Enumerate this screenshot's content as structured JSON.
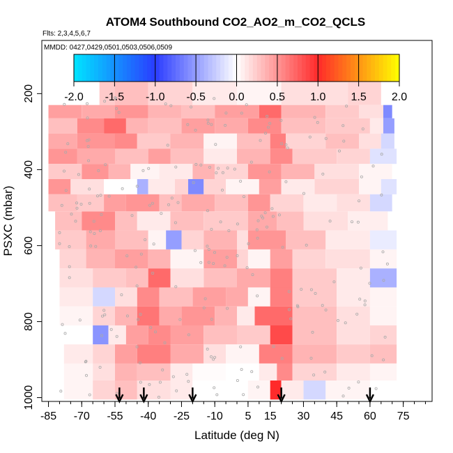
{
  "chart_data": {
    "type": "heatmap",
    "title": "ATOM4 Southbound CO2_AO2_m_CO2_QCLS",
    "subtitle_flights": "Flts: 2,3,4,5,6,7",
    "subtitle_dates": "MMDD: 0427,0429,0501,0503,0506,0509",
    "xlabel": "Latitude (deg N)",
    "ylabel": "PSXC (mbar)",
    "xlim": [
      -88,
      88
    ],
    "ylim": [
      1010,
      60
    ],
    "x_ticks": [
      -85,
      -70,
      -55,
      -40,
      -25,
      -10,
      5,
      15,
      30,
      45,
      60,
      75
    ],
    "x_tick_labels": [
      "-85",
      "-70",
      "-55",
      "-40",
      "-25",
      "-10",
      "5",
      "15",
      "30",
      "45",
      "60",
      "75"
    ],
    "x_minor_step": 5,
    "y_ticks": [
      200,
      400,
      600,
      800,
      1000
    ],
    "y_tick_labels": [
      "200",
      "400",
      "600",
      "800",
      "1000"
    ],
    "colorbar": {
      "min": -2.0,
      "max": 2.0,
      "ticks": [
        -2.0,
        -1.5,
        -1.0,
        -0.5,
        0.0,
        0.5,
        1.0,
        1.5,
        2.0
      ],
      "tick_labels": [
        "-2.0",
        "-1.5",
        "-1.0",
        "-0.5",
        "0.0",
        "0.5",
        "1.0",
        "1.5",
        "2.0"
      ],
      "colors": {
        "low": "#00e5ff",
        "mid_low": "#2a3cff",
        "zero": "#ffffff",
        "mid_high": "#ff2a2a",
        "high": "#ffff00"
      }
    },
    "profile_arrows_lat": [
      -53,
      -42,
      -20,
      20,
      60
    ],
    "band_pressures": [
      200,
      260,
      300,
      350,
      400,
      450,
      500,
      550,
      600,
      650,
      700,
      750,
      800,
      850,
      900,
      950,
      1000
    ],
    "bands": [
      {
        "p_top": 165,
        "p_bot": 230,
        "segments": [
          [
            -62,
            -55,
            0.25
          ],
          [
            -55,
            -40,
            0.3
          ],
          [
            -40,
            -20,
            0.2
          ],
          [
            -20,
            0,
            0.1
          ],
          [
            0,
            20,
            0.05
          ],
          [
            20,
            50,
            0.15
          ],
          [
            50,
            65,
            0.2
          ]
        ]
      },
      {
        "p_top": 230,
        "p_bot": 265,
        "segments": [
          [
            -85,
            -70,
            0.45
          ],
          [
            -70,
            -55,
            0.4
          ],
          [
            -55,
            -40,
            0.5
          ],
          [
            -40,
            -25,
            0.35
          ],
          [
            -25,
            -10,
            0.3
          ],
          [
            -10,
            10,
            0.45
          ],
          [
            10,
            20,
            0.7
          ],
          [
            20,
            40,
            0.35
          ],
          [
            40,
            55,
            0.25
          ],
          [
            55,
            66,
            0.15
          ],
          [
            66,
            70,
            -0.6
          ]
        ]
      },
      {
        "p_top": 265,
        "p_bot": 305,
        "segments": [
          [
            -85,
            -72,
            0.3
          ],
          [
            -72,
            -60,
            0.55
          ],
          [
            -60,
            -50,
            0.7
          ],
          [
            -50,
            -40,
            0.35
          ],
          [
            -40,
            -25,
            0.3
          ],
          [
            -25,
            -10,
            0.45
          ],
          [
            -10,
            5,
            0.4
          ],
          [
            5,
            20,
            0.55
          ],
          [
            20,
            40,
            0.3
          ],
          [
            40,
            60,
            0.25
          ],
          [
            60,
            66,
            0.1
          ],
          [
            66,
            71,
            -0.5
          ]
        ]
      },
      {
        "p_top": 305,
        "p_bot": 345,
        "segments": [
          [
            -85,
            -72,
            0.4
          ],
          [
            -72,
            -55,
            0.5
          ],
          [
            -55,
            -45,
            0.55
          ],
          [
            -45,
            -30,
            0.25
          ],
          [
            -30,
            -15,
            0.35
          ],
          [
            -15,
            0,
            0.05
          ],
          [
            0,
            15,
            0.3
          ],
          [
            15,
            22,
            0.6
          ],
          [
            22,
            40,
            0.2
          ],
          [
            40,
            55,
            0.3
          ],
          [
            55,
            65,
            0.15
          ],
          [
            65,
            71,
            -0.2
          ]
        ]
      },
      {
        "p_top": 345,
        "p_bot": 385,
        "segments": [
          [
            -85,
            -72,
            0.5
          ],
          [
            -72,
            -55,
            0.4
          ],
          [
            -55,
            -40,
            0.3
          ],
          [
            -40,
            -30,
            0.45
          ],
          [
            -30,
            -15,
            0.3
          ],
          [
            -15,
            0,
            0.1
          ],
          [
            0,
            15,
            0.35
          ],
          [
            15,
            25,
            0.55
          ],
          [
            25,
            45,
            0.25
          ],
          [
            45,
            60,
            0.2
          ],
          [
            60,
            72,
            -0.15
          ]
        ]
      },
      {
        "p_top": 385,
        "p_bot": 425,
        "segments": [
          [
            -85,
            -70,
            0.25
          ],
          [
            -70,
            -58,
            0.5
          ],
          [
            -58,
            -48,
            0.35
          ],
          [
            -48,
            -35,
            0.05
          ],
          [
            -35,
            -20,
            0.1
          ],
          [
            -20,
            -10,
            0.35
          ],
          [
            -10,
            5,
            0.2
          ],
          [
            5,
            20,
            0.5
          ],
          [
            20,
            35,
            0.35
          ],
          [
            35,
            55,
            0.15
          ],
          [
            55,
            70,
            0.05
          ]
        ]
      },
      {
        "p_top": 425,
        "p_bot": 465,
        "segments": [
          [
            -85,
            -75,
            0.5
          ],
          [
            -75,
            -60,
            0.15
          ],
          [
            -60,
            -45,
            0.0
          ],
          [
            -45,
            -40,
            -0.4
          ],
          [
            -40,
            -28,
            0.1
          ],
          [
            -28,
            -22,
            0.2
          ],
          [
            -22,
            -15,
            -0.6
          ],
          [
            -15,
            -5,
            0.2
          ],
          [
            -5,
            10,
            0.05
          ],
          [
            10,
            20,
            0.45
          ],
          [
            20,
            35,
            0.1
          ],
          [
            35,
            55,
            0.2
          ],
          [
            55,
            65,
            0.05
          ],
          [
            65,
            72,
            -0.15
          ]
        ]
      },
      {
        "p_top": 465,
        "p_bot": 510,
        "segments": [
          [
            -85,
            -72,
            0.3
          ],
          [
            -72,
            -60,
            0.25
          ],
          [
            -60,
            -50,
            0.45
          ],
          [
            -50,
            -35,
            0.5
          ],
          [
            -35,
            -25,
            0.3
          ],
          [
            -25,
            -10,
            0.4
          ],
          [
            -10,
            5,
            0.3
          ],
          [
            5,
            15,
            0.5
          ],
          [
            15,
            30,
            0.2
          ],
          [
            30,
            45,
            0.1
          ],
          [
            45,
            60,
            0.15
          ],
          [
            60,
            70,
            -0.2
          ]
        ]
      },
      {
        "p_top": 510,
        "p_bot": 560,
        "segments": [
          [
            -82,
            -70,
            0.3
          ],
          [
            -70,
            -55,
            0.55
          ],
          [
            -55,
            -45,
            0.3
          ],
          [
            -45,
            -30,
            0.1
          ],
          [
            -30,
            -15,
            0.3
          ],
          [
            -15,
            5,
            0.25
          ],
          [
            5,
            18,
            0.4
          ],
          [
            18,
            30,
            0.3
          ],
          [
            30,
            50,
            0.15
          ],
          [
            50,
            68,
            0.08
          ]
        ]
      },
      {
        "p_top": 560,
        "p_bot": 610,
        "segments": [
          [
            -82,
            -68,
            0.25
          ],
          [
            -68,
            -55,
            0.4
          ],
          [
            -55,
            -40,
            0.3
          ],
          [
            -40,
            -32,
            0.05
          ],
          [
            -32,
            -25,
            -0.5
          ],
          [
            -25,
            -15,
            0.2
          ],
          [
            -15,
            0,
            0.35
          ],
          [
            0,
            5,
            0.15
          ],
          [
            5,
            22,
            0.5
          ],
          [
            22,
            40,
            0.3
          ],
          [
            40,
            60,
            0.1
          ],
          [
            60,
            72,
            -0.1
          ]
        ]
      },
      {
        "p_top": 610,
        "p_bot": 660,
        "segments": [
          [
            -80,
            -68,
            0.2
          ],
          [
            -68,
            -55,
            0.35
          ],
          [
            -55,
            -40,
            0.45
          ],
          [
            -40,
            -30,
            0.35
          ],
          [
            -30,
            -15,
            0.05
          ],
          [
            -15,
            0,
            0.45
          ],
          [
            0,
            5,
            0.2
          ],
          [
            5,
            15,
            0.05
          ],
          [
            15,
            25,
            0.45
          ],
          [
            25,
            40,
            0.2
          ],
          [
            40,
            60,
            0.15
          ],
          [
            60,
            72,
            0.05
          ]
        ]
      },
      {
        "p_top": 660,
        "p_bot": 710,
        "segments": [
          [
            -80,
            -65,
            0.15
          ],
          [
            -65,
            -50,
            0.25
          ],
          [
            -50,
            -40,
            0.3
          ],
          [
            -40,
            -30,
            0.7
          ],
          [
            -30,
            -15,
            0.15
          ],
          [
            -15,
            0,
            0.3
          ],
          [
            0,
            15,
            0.4
          ],
          [
            15,
            25,
            0.6
          ],
          [
            25,
            45,
            0.25
          ],
          [
            45,
            60,
            0.1
          ],
          [
            60,
            72,
            -0.4
          ]
        ]
      },
      {
        "p_top": 710,
        "p_bot": 760,
        "segments": [
          [
            -80,
            -65,
            0.1
          ],
          [
            -65,
            -55,
            -0.2
          ],
          [
            -55,
            -45,
            0.15
          ],
          [
            -45,
            -35,
            0.55
          ],
          [
            -35,
            -20,
            0.3
          ],
          [
            -20,
            -5,
            0.45
          ],
          [
            -5,
            5,
            0.4
          ],
          [
            5,
            15,
            0.05
          ],
          [
            15,
            25,
            0.6
          ],
          [
            25,
            45,
            0.25
          ],
          [
            45,
            60,
            0.1
          ],
          [
            60,
            72,
            0.05
          ]
        ]
      },
      {
        "p_top": 760,
        "p_bot": 810,
        "segments": [
          [
            -80,
            -65,
            0.05
          ],
          [
            -65,
            -55,
            0.2
          ],
          [
            -55,
            -45,
            0.35
          ],
          [
            -45,
            -35,
            0.65
          ],
          [
            -35,
            -25,
            0.4
          ],
          [
            -25,
            -10,
            0.5
          ],
          [
            -10,
            0,
            0.35
          ],
          [
            0,
            8,
            0.1
          ],
          [
            8,
            25,
            0.7
          ],
          [
            25,
            45,
            0.3
          ],
          [
            45,
            60,
            0.15
          ],
          [
            60,
            72,
            0.05
          ]
        ]
      },
      {
        "p_top": 810,
        "p_bot": 860,
        "segments": [
          [
            -78,
            -65,
            0.0
          ],
          [
            -65,
            -58,
            -0.55
          ],
          [
            -58,
            -50,
            0.1
          ],
          [
            -50,
            -40,
            0.45
          ],
          [
            -40,
            -30,
            0.55
          ],
          [
            -30,
            -15,
            0.45
          ],
          [
            -15,
            0,
            0.3
          ],
          [
            0,
            15,
            0.25
          ],
          [
            15,
            25,
            0.85
          ],
          [
            25,
            45,
            0.3
          ],
          [
            45,
            60,
            0.15
          ],
          [
            60,
            72,
            0.2
          ]
        ]
      },
      {
        "p_top": 860,
        "p_bot": 910,
        "segments": [
          [
            -78,
            -65,
            0.1
          ],
          [
            -65,
            -55,
            0.2
          ],
          [
            -55,
            -45,
            0.45
          ],
          [
            -45,
            -30,
            0.6
          ],
          [
            -30,
            -15,
            0.4
          ],
          [
            -15,
            -5,
            0.15
          ],
          [
            -5,
            10,
            0.05
          ],
          [
            10,
            25,
            0.6
          ],
          [
            25,
            45,
            0.35
          ],
          [
            45,
            60,
            0.25
          ],
          [
            60,
            72,
            0.3
          ]
        ]
      },
      {
        "p_top": 910,
        "p_bot": 955,
        "segments": [
          [
            -78,
            -65,
            0.05
          ],
          [
            -65,
            -55,
            0.15
          ],
          [
            -55,
            -45,
            0.35
          ],
          [
            -45,
            -30,
            0.3
          ],
          [
            -30,
            -20,
            0.1
          ],
          [
            -20,
            -5,
            0.02
          ],
          [
            -5,
            10,
            0.0
          ],
          [
            10,
            18,
            0.1
          ],
          [
            18,
            25,
            0.55
          ],
          [
            25,
            45,
            0.2
          ],
          [
            45,
            60,
            0.1
          ],
          [
            60,
            72,
            0.05
          ]
        ]
      },
      {
        "p_top": 955,
        "p_bot": 1005,
        "segments": [
          [
            -78,
            -65,
            0.05
          ],
          [
            -65,
            -55,
            0.2
          ],
          [
            -55,
            -45,
            0.3
          ],
          [
            -45,
            -30,
            0.15
          ],
          [
            -30,
            -20,
            0.1
          ],
          [
            -20,
            5,
            0.0
          ],
          [
            5,
            15,
            0.05
          ],
          [
            15,
            20,
            1.0
          ],
          [
            20,
            30,
            0.1
          ],
          [
            30,
            40,
            -0.2
          ],
          [
            40,
            60,
            0.05
          ],
          [
            60,
            72,
            0.0
          ]
        ]
      }
    ]
  }
}
